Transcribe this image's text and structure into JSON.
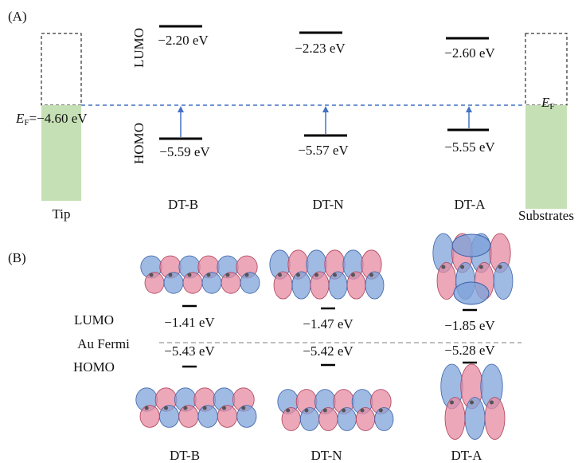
{
  "panel_a": {
    "label": "(A)",
    "lumo_axis": "LUMO",
    "homo_axis": "HOMO",
    "tip": {
      "name": "Tip",
      "fermi_symbol": "E",
      "fermi_sub": "F",
      "fermi_value": "=−4.60 eV"
    },
    "substrate": {
      "name": "Substrates",
      "fermi_symbol": "E",
      "fermi_sub": "F"
    },
    "molecules": [
      {
        "name": "DT-B",
        "lumo": "−2.20 eV",
        "homo": "−5.59 eV"
      },
      {
        "name": "DT-N",
        "lumo": "−2.23 eV",
        "homo": "−5.57 eV"
      },
      {
        "name": "DT-A",
        "lumo": "−2.60 eV",
        "homo": "−5.55 eV"
      }
    ]
  },
  "panel_b": {
    "label": "(B)",
    "lumo_label": "LUMO",
    "fermi_label": "Au Fermi",
    "homo_label": "HOMO",
    "molecules": [
      {
        "name": "DT-B",
        "lumo": "−1.41 eV",
        "homo": "−5.43 eV"
      },
      {
        "name": "DT-N",
        "lumo": "−1.47 eV",
        "homo": "−5.42 eV"
      },
      {
        "name": "DT-A",
        "lumo": "−1.85 eV",
        "homo": "−5.28 eV"
      }
    ]
  }
}
